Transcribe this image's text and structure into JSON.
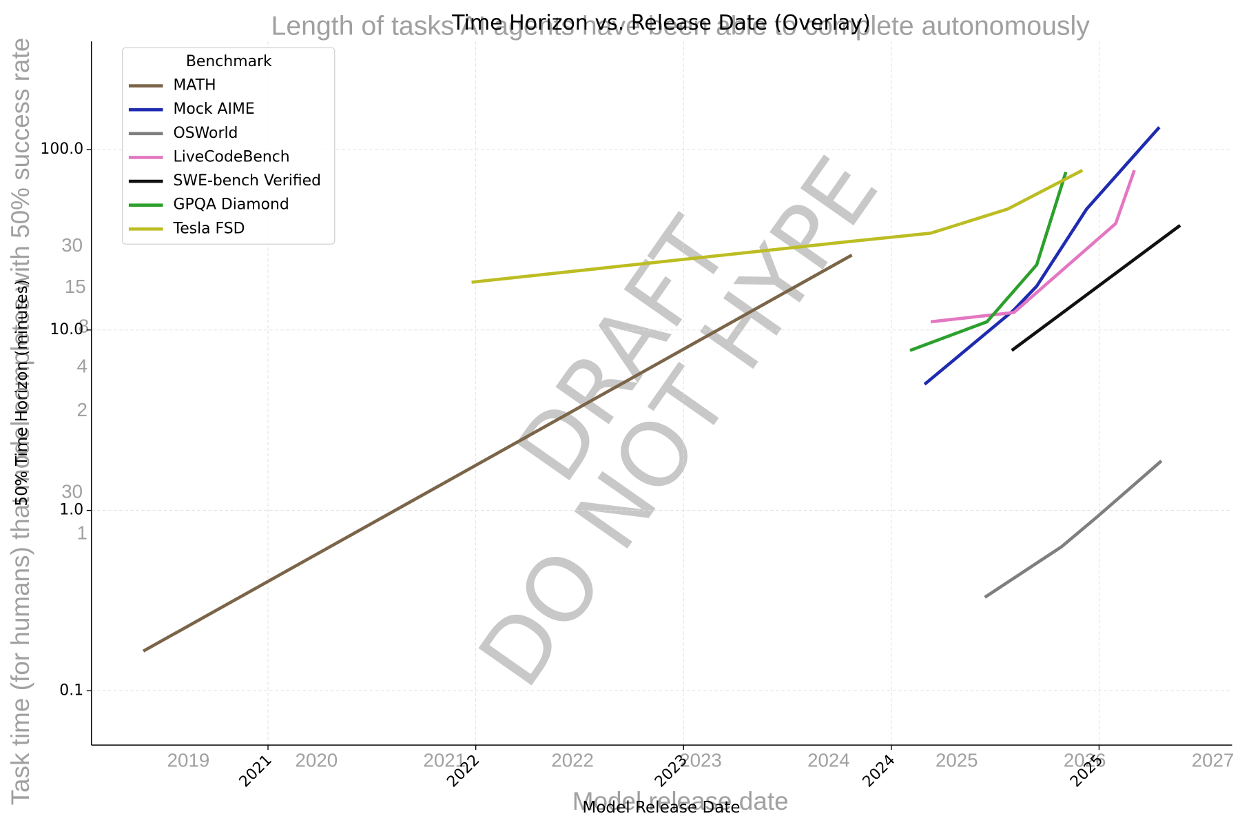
{
  "background": {
    "title": "Length of tasks AI agents have been able to complete autonomously",
    "y_label": "Task time (for humans) that model completes with 50% success rate",
    "x_label": "Model release date",
    "xticks": [
      "2019",
      "2020",
      "2021",
      "2022",
      "2023",
      "2024",
      "2025",
      "2026",
      "2027"
    ],
    "y_fragments": [
      "30",
      "15",
      "8",
      "4",
      "2",
      "30",
      "1"
    ],
    "watermark": [
      "DRAFT",
      "DO NOT HYPE"
    ]
  },
  "chart_data": {
    "type": "line",
    "title": "Time Horizon vs. Release Date (Overlay)",
    "x_label": "Model Release Date",
    "y_label": "50% Time Horizon (minutes)",
    "y_scale": "log",
    "grid": true,
    "legend_title": "Benchmark",
    "legend": "upper left",
    "xlim": [
      2020.15,
      2025.64
    ],
    "xticks": [
      2021,
      2022,
      2023,
      2024,
      2025
    ],
    "ylim": [
      0.05,
      398
    ],
    "yticks": [
      {
        "value": 0.1,
        "label": "0.1"
      },
      {
        "value": 1,
        "label": "1.0"
      },
      {
        "value": 10,
        "label": "10.0"
      },
      {
        "value": 100,
        "label": "100.0"
      }
    ],
    "series": [
      {
        "name": "MATH",
        "color": "#7b6549",
        "x": [
          2020.4,
          2023.81
        ],
        "values": [
          0.166,
          26
        ]
      },
      {
        "name": "Mock AIME",
        "color": "#1f2bb0",
        "x": [
          2024.16,
          2024.59,
          2024.7,
          2024.94,
          2025.29
        ],
        "values": [
          5.0,
          12.9,
          17.5,
          46.8,
          133
        ]
      },
      {
        "name": "OSWorld",
        "color": "#7f7f7f",
        "x": [
          2024.45,
          2024.82,
          2024.99,
          2025.3
        ],
        "values": [
          0.33,
          0.63,
          0.92,
          1.88
        ]
      },
      {
        "name": "LiveCodeBench",
        "color": "#e377c2",
        "x": [
          2024.19,
          2024.59,
          2025.08,
          2025.17
        ],
        "values": [
          11.1,
          12.5,
          38.9,
          76.8
        ]
      },
      {
        "name": "SWE-bench Verified",
        "color": "#111111",
        "x": [
          2024.58,
          2025.39
        ],
        "values": [
          7.7,
          38
        ]
      },
      {
        "name": "GPQA Diamond",
        "color": "#2ca02c",
        "x": [
          2024.09,
          2024.46,
          2024.7,
          2024.84
        ],
        "values": [
          7.7,
          11.1,
          23,
          75
        ]
      },
      {
        "name": "Tesla FSD",
        "color": "#bcbd22",
        "x": [
          2021.98,
          2023.76,
          2024.19,
          2024.56,
          2024.92
        ],
        "values": [
          18.4,
          30.6,
          34.4,
          46.8,
          76.8
        ]
      }
    ]
  }
}
